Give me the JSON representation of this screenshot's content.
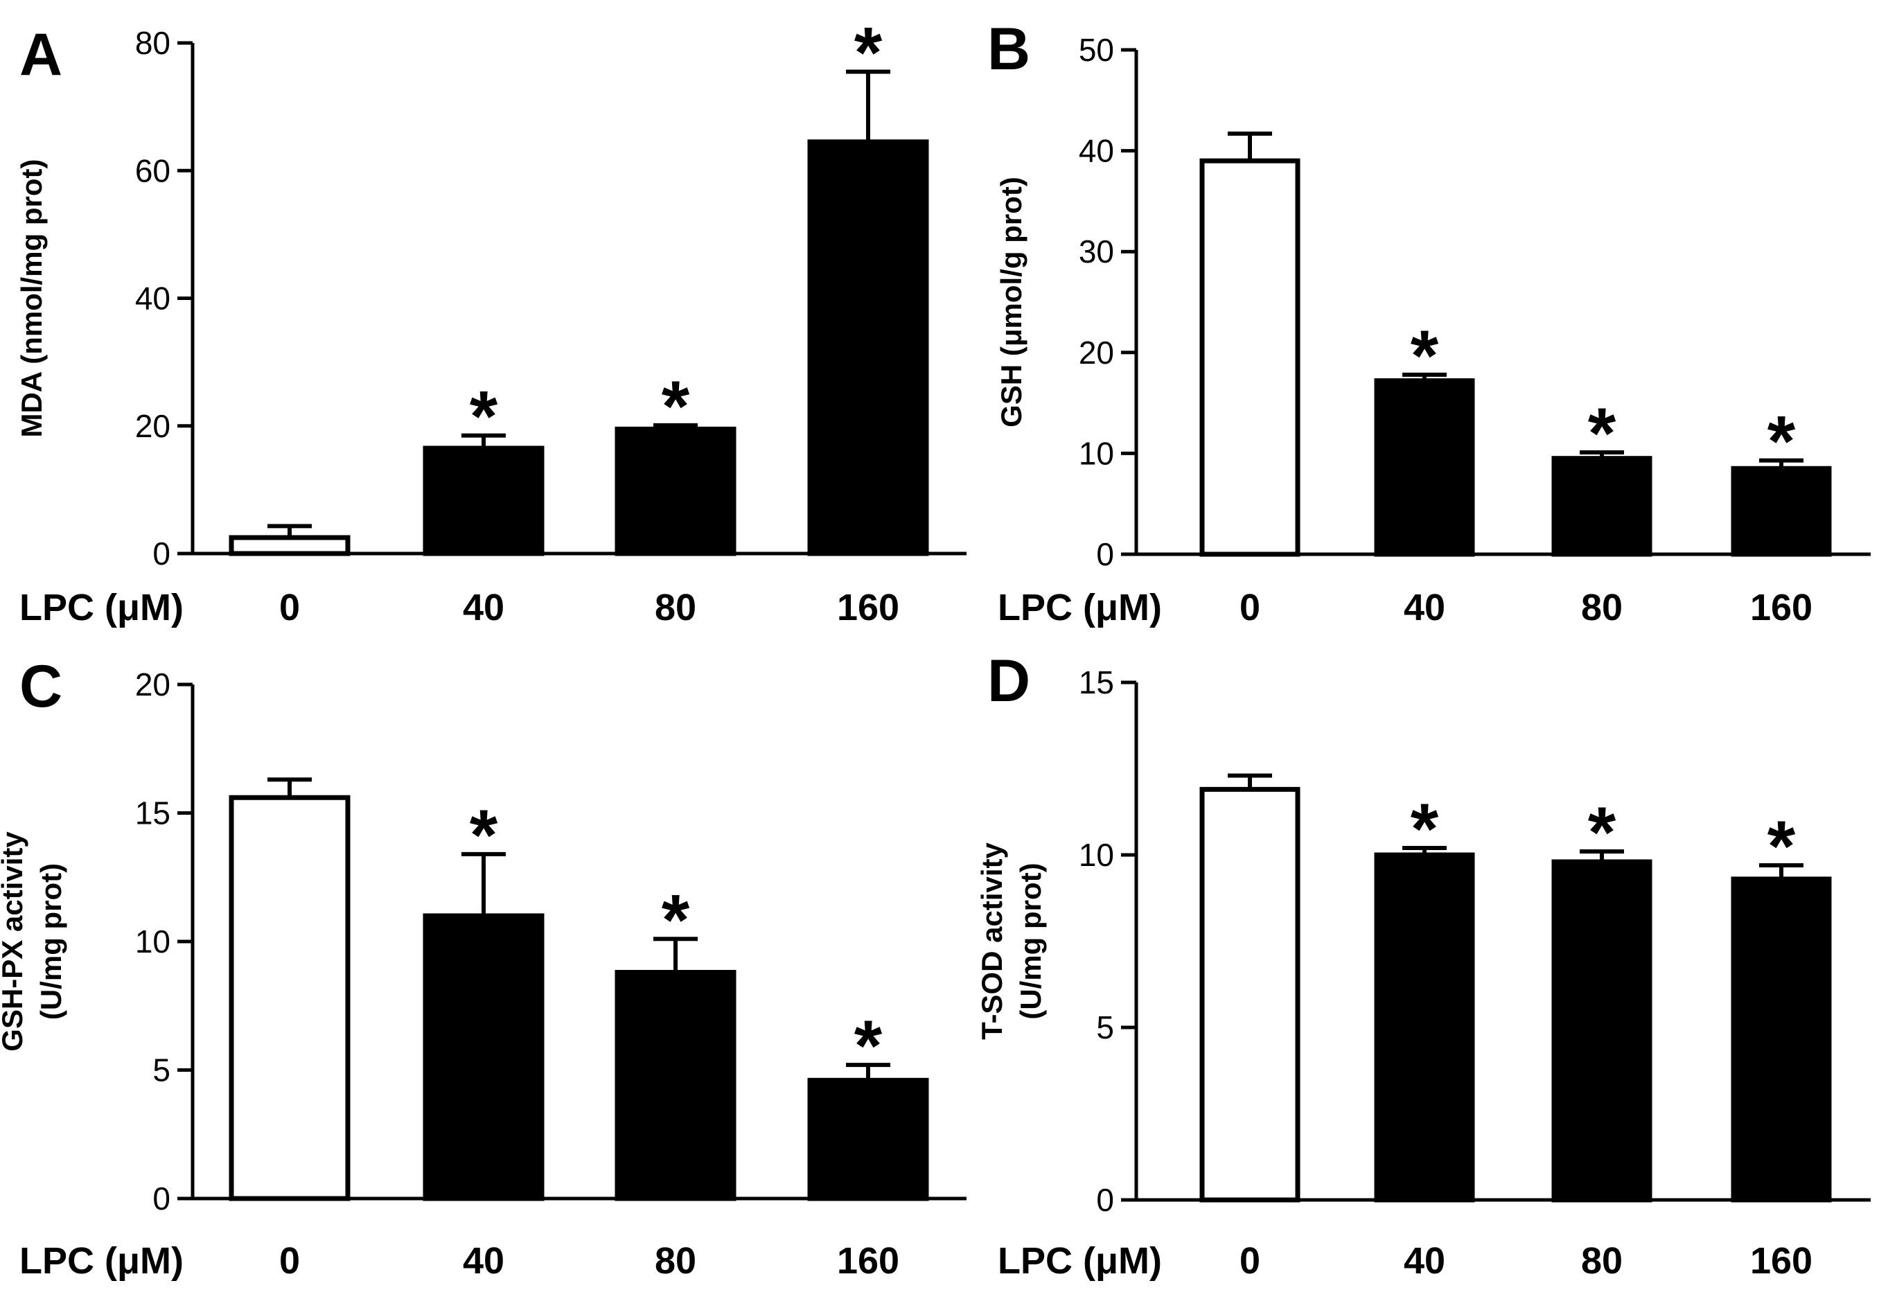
{
  "chart_data": [
    {
      "panel": "A",
      "type": "bar",
      "categories": [
        "0",
        "40",
        "80",
        "160"
      ],
      "values": [
        2.5,
        16.5,
        19.5,
        64.5
      ],
      "errors": [
        1.8,
        2.0,
        0.6,
        11.0
      ],
      "fills": [
        "#ffffff",
        "#000000",
        "#000000",
        "#000000"
      ],
      "significance": [
        "",
        "*",
        "*",
        "*"
      ],
      "xlabel": "LPC (μM)",
      "ylabel": [
        "MDA (nmol/mg prot)"
      ],
      "ylim": [
        0,
        80
      ],
      "yticks": [
        0,
        20,
        40,
        60,
        80
      ]
    },
    {
      "panel": "B",
      "type": "bar",
      "categories": [
        "0",
        "40",
        "80",
        "160"
      ],
      "values": [
        39,
        17.2,
        9.5,
        8.5
      ],
      "errors": [
        2.7,
        0.6,
        0.6,
        0.8
      ],
      "fills": [
        "#ffffff",
        "#000000",
        "#000000",
        "#000000"
      ],
      "significance": [
        "",
        "*",
        "*",
        "*"
      ],
      "xlabel": "LPC (μM)",
      "ylabel": [
        "GSH (μmol/g prot)"
      ],
      "ylim": [
        0,
        50
      ],
      "yticks": [
        0,
        10,
        20,
        30,
        40,
        50
      ]
    },
    {
      "panel": "C",
      "type": "bar",
      "categories": [
        "0",
        "40",
        "80",
        "160"
      ],
      "values": [
        15.6,
        11.0,
        8.8,
        4.6
      ],
      "errors": [
        0.7,
        2.4,
        1.3,
        0.6
      ],
      "fills": [
        "#ffffff",
        "#000000",
        "#000000",
        "#000000"
      ],
      "significance": [
        "",
        "*",
        "*",
        "*"
      ],
      "xlabel": "LPC (μM)",
      "ylabel": [
        "GSH-PX activity",
        "(U/mg prot)"
      ],
      "ylim": [
        0,
        20
      ],
      "yticks": [
        0,
        5,
        10,
        15,
        20
      ]
    },
    {
      "panel": "D",
      "type": "bar",
      "categories": [
        "0",
        "40",
        "80",
        "160"
      ],
      "values": [
        11.9,
        10.0,
        9.8,
        9.3
      ],
      "errors": [
        0.4,
        0.2,
        0.3,
        0.4
      ],
      "fills": [
        "#ffffff",
        "#000000",
        "#000000",
        "#000000"
      ],
      "significance": [
        "",
        "*",
        "*",
        "*"
      ],
      "xlabel": "LPC (μM)",
      "ylabel": [
        "T-SOD activity",
        "(U/mg prot)"
      ],
      "ylim": [
        0,
        15
      ],
      "yticks": [
        0,
        5,
        10,
        15
      ]
    }
  ]
}
